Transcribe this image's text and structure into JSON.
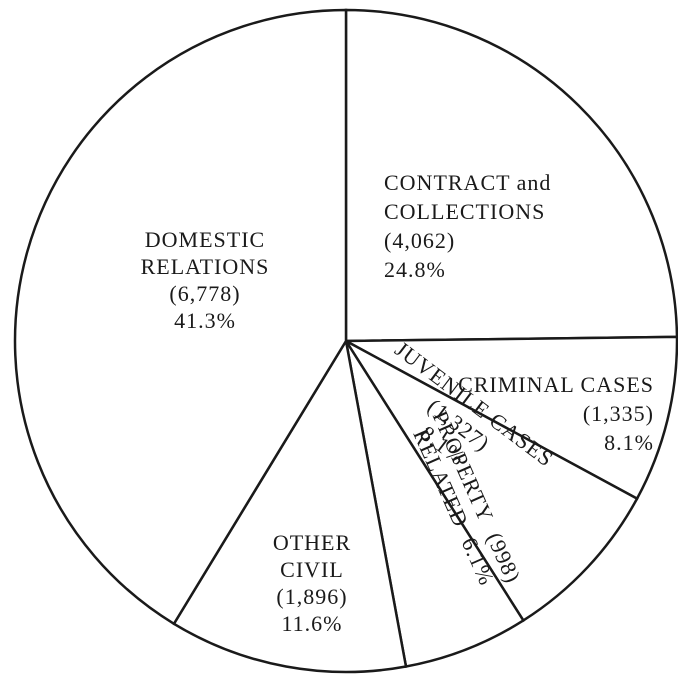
{
  "chart_data": {
    "type": "pie",
    "categories": [
      [
        "CONTRACT and",
        "COLLECTIONS"
      ],
      [
        "CRIMINAL CASES"
      ],
      [
        "JUVENILE CASES"
      ],
      [
        "PROPERTY",
        "RELATED"
      ],
      [
        "OTHER",
        "CIVIL"
      ],
      [
        "DOMESTIC",
        "RELATIONS"
      ]
    ],
    "count_labels": [
      "(4,062)",
      "(1,335)",
      "(1,327)",
      "(998)",
      "(1,896)",
      "(6,778)"
    ],
    "values": [
      24.8,
      8.1,
      8.1,
      6.1,
      11.6,
      41.3
    ],
    "value_labels": [
      "24.8%",
      "8.1%",
      "8.1%",
      "6.1%",
      "11.6%",
      "41.3%"
    ],
    "color": "#ffffff",
    "stroke": "#1a1a1a",
    "start_angle": 0,
    "direction": "clockwise"
  }
}
